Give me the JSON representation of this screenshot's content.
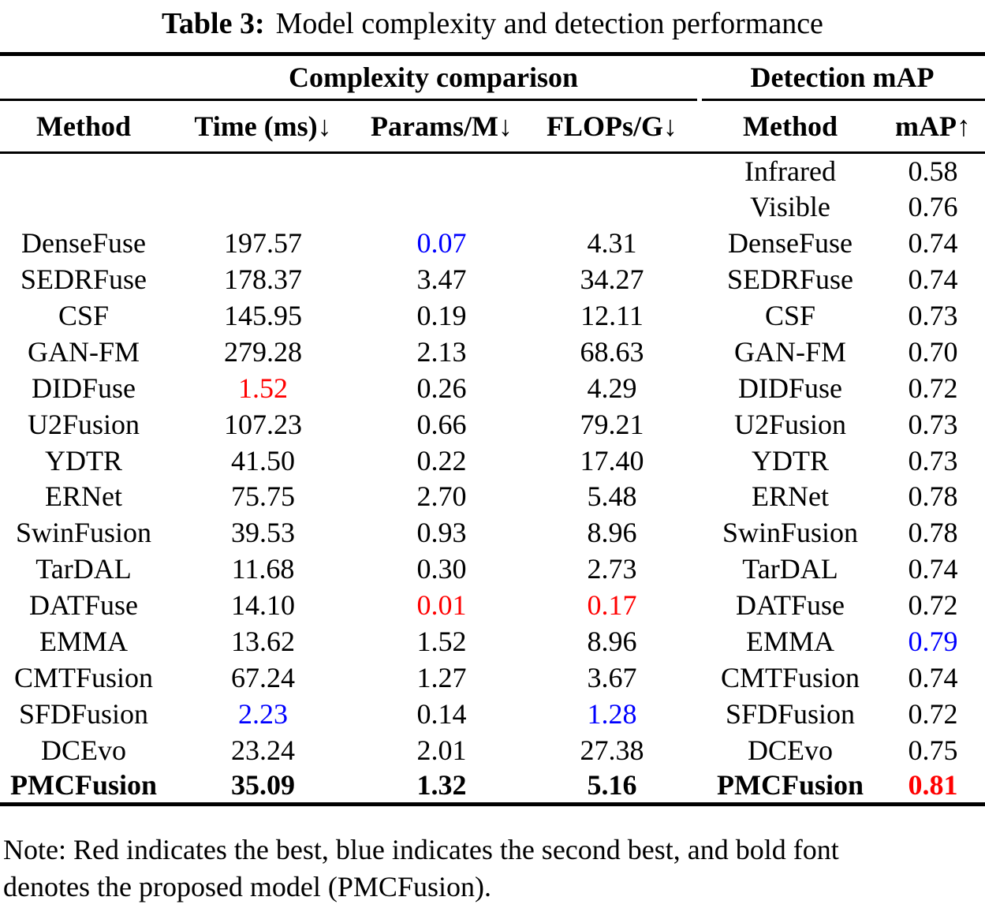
{
  "title": {
    "label": "Table 3:",
    "text": "Model complexity and detection performance"
  },
  "groups": {
    "complexity": "Complexity comparison",
    "detection": "Detection mAP"
  },
  "columns": [
    "Method",
    "Time (ms)↓",
    "Params/M↓",
    "FLOPs/G↓",
    "Method",
    "mAP↑"
  ],
  "rows": [
    [
      {
        "text": ""
      },
      {
        "text": ""
      },
      {
        "text": ""
      },
      {
        "text": ""
      },
      {
        "text": "Infrared"
      },
      {
        "text": "0.58"
      }
    ],
    [
      {
        "text": ""
      },
      {
        "text": ""
      },
      {
        "text": ""
      },
      {
        "text": ""
      },
      {
        "text": "Visible"
      },
      {
        "text": "0.76"
      }
    ],
    [
      {
        "text": "DenseFuse"
      },
      {
        "text": "197.57"
      },
      {
        "text": "0.07",
        "style": "second"
      },
      {
        "text": "4.31"
      },
      {
        "text": "DenseFuse"
      },
      {
        "text": "0.74"
      }
    ],
    [
      {
        "text": "SEDRFuse"
      },
      {
        "text": "178.37"
      },
      {
        "text": "3.47"
      },
      {
        "text": "34.27"
      },
      {
        "text": "SEDRFuse"
      },
      {
        "text": "0.74"
      }
    ],
    [
      {
        "text": "CSF"
      },
      {
        "text": "145.95"
      },
      {
        "text": "0.19"
      },
      {
        "text": "12.11"
      },
      {
        "text": "CSF"
      },
      {
        "text": "0.73"
      }
    ],
    [
      {
        "text": "GAN-FM"
      },
      {
        "text": "279.28"
      },
      {
        "text": "2.13"
      },
      {
        "text": "68.63"
      },
      {
        "text": "GAN-FM"
      },
      {
        "text": "0.70"
      }
    ],
    [
      {
        "text": "DIDFuse"
      },
      {
        "text": "1.52",
        "style": "best"
      },
      {
        "text": "0.26"
      },
      {
        "text": "4.29"
      },
      {
        "text": "DIDFuse"
      },
      {
        "text": "0.72"
      }
    ],
    [
      {
        "text": "U2Fusion"
      },
      {
        "text": "107.23"
      },
      {
        "text": "0.66"
      },
      {
        "text": "79.21"
      },
      {
        "text": "U2Fusion"
      },
      {
        "text": "0.73"
      }
    ],
    [
      {
        "text": "YDTR"
      },
      {
        "text": "41.50"
      },
      {
        "text": "0.22"
      },
      {
        "text": "17.40"
      },
      {
        "text": "YDTR"
      },
      {
        "text": "0.73"
      }
    ],
    [
      {
        "text": "ERNet"
      },
      {
        "text": "75.75"
      },
      {
        "text": "2.70"
      },
      {
        "text": "5.48"
      },
      {
        "text": "ERNet"
      },
      {
        "text": "0.78"
      }
    ],
    [
      {
        "text": "SwinFusion"
      },
      {
        "text": "39.53"
      },
      {
        "text": "0.93"
      },
      {
        "text": "8.96"
      },
      {
        "text": "SwinFusion"
      },
      {
        "text": "0.78"
      }
    ],
    [
      {
        "text": "TarDAL"
      },
      {
        "text": "11.68"
      },
      {
        "text": "0.30"
      },
      {
        "text": "2.73"
      },
      {
        "text": "TarDAL"
      },
      {
        "text": "0.74"
      }
    ],
    [
      {
        "text": "DATFuse"
      },
      {
        "text": "14.10"
      },
      {
        "text": "0.01",
        "style": "best"
      },
      {
        "text": "0.17",
        "style": "best"
      },
      {
        "text": "DATFuse"
      },
      {
        "text": "0.72"
      }
    ],
    [
      {
        "text": "EMMA"
      },
      {
        "text": "13.62"
      },
      {
        "text": "1.52"
      },
      {
        "text": "8.96"
      },
      {
        "text": "EMMA"
      },
      {
        "text": "0.79",
        "style": "second"
      }
    ],
    [
      {
        "text": "CMTFusion"
      },
      {
        "text": "67.24"
      },
      {
        "text": "1.27"
      },
      {
        "text": "3.67"
      },
      {
        "text": "CMTFusion"
      },
      {
        "text": "0.74"
      }
    ],
    [
      {
        "text": "SFDFusion"
      },
      {
        "text": "2.23",
        "style": "second"
      },
      {
        "text": "0.14"
      },
      {
        "text": "1.28",
        "style": "second"
      },
      {
        "text": "SFDFusion"
      },
      {
        "text": "0.72"
      }
    ],
    [
      {
        "text": "DCEvo"
      },
      {
        "text": "23.24"
      },
      {
        "text": "2.01"
      },
      {
        "text": "27.38"
      },
      {
        "text": "DCEvo"
      },
      {
        "text": "0.75"
      }
    ],
    [
      {
        "text": "PMCFusion",
        "style": "bold"
      },
      {
        "text": "35.09",
        "style": "bold"
      },
      {
        "text": "1.32",
        "style": "bold"
      },
      {
        "text": "5.16",
        "style": "bold"
      },
      {
        "text": "PMCFusion",
        "style": "bold"
      },
      {
        "text": "0.81",
        "style": "bold best"
      }
    ]
  ],
  "note": {
    "lines": [
      "Note: Red indicates the best, blue indicates the second best, and bold font",
      "denotes the proposed model (PMCFusion)."
    ]
  },
  "colors": {
    "best": "#ff0000",
    "second_best": "#0000ff",
    "text": "#000000",
    "rule": "#000000",
    "background": "#ffffff"
  }
}
